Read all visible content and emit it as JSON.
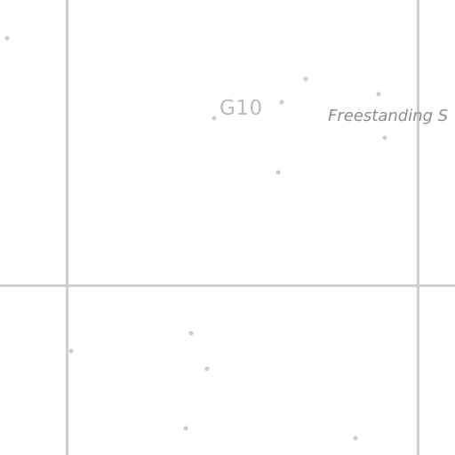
{
  "map": {
    "labels": {
      "block_code": "G10",
      "place_name": "Freestanding S"
    },
    "colors": {
      "background": "#ffffff",
      "road": "#cfcfcf",
      "poi_dot": "#c9ccce",
      "label_text": "#8a8e91"
    }
  }
}
